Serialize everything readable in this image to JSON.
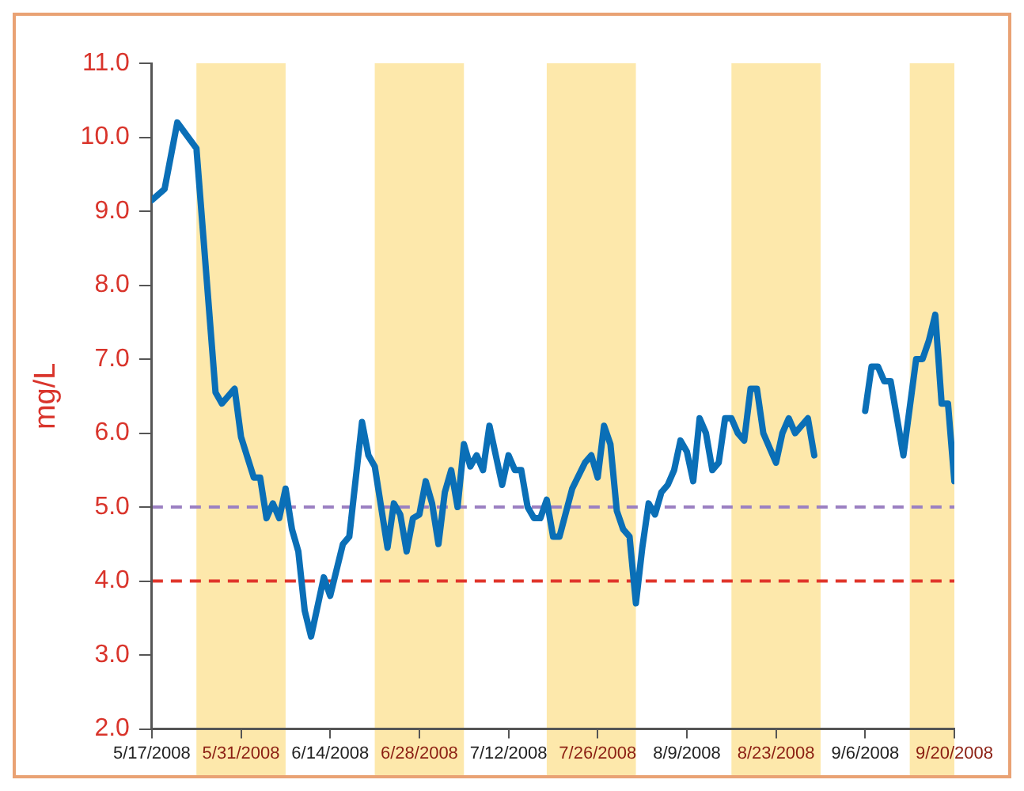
{
  "chart_data": {
    "type": "line",
    "ylabel": "mg/L",
    "x": [
      "2008-05-17",
      "2008-05-19",
      "2008-05-21",
      "2008-05-24",
      "2008-05-27",
      "2008-05-28",
      "2008-05-30",
      "2008-05-31",
      "2008-06-02",
      "2008-06-03",
      "2008-06-04",
      "2008-06-05",
      "2008-06-06",
      "2008-06-07",
      "2008-06-08",
      "2008-06-09",
      "2008-06-10",
      "2008-06-11",
      "2008-06-13",
      "2008-06-14",
      "2008-06-16",
      "2008-06-17",
      "2008-06-19",
      "2008-06-20",
      "2008-06-21",
      "2008-06-23",
      "2008-06-24",
      "2008-06-25",
      "2008-06-26",
      "2008-06-27",
      "2008-06-28",
      "2008-06-29",
      "2008-06-30",
      "2008-07-01",
      "2008-07-02",
      "2008-07-03",
      "2008-07-04",
      "2008-07-05",
      "2008-07-06",
      "2008-07-07",
      "2008-07-08",
      "2008-07-09",
      "2008-07-11",
      "2008-07-12",
      "2008-07-13",
      "2008-07-14",
      "2008-07-15",
      "2008-07-16",
      "2008-07-17",
      "2008-07-18",
      "2008-07-19",
      "2008-07-20",
      "2008-07-22",
      "2008-07-24",
      "2008-07-25",
      "2008-07-26",
      "2008-07-27",
      "2008-07-28",
      "2008-07-29",
      "2008-07-30",
      "2008-07-31",
      "2008-08-01",
      "2008-08-02",
      "2008-08-03",
      "2008-08-04",
      "2008-08-05",
      "2008-08-06",
      "2008-08-07",
      "2008-08-08",
      "2008-08-09",
      "2008-08-10",
      "2008-08-11",
      "2008-08-12",
      "2008-08-13",
      "2008-08-14",
      "2008-08-15",
      "2008-08-16",
      "2008-08-17",
      "2008-08-18",
      "2008-08-19",
      "2008-08-20",
      "2008-08-21",
      "2008-08-23",
      "2008-08-24",
      "2008-08-25",
      "2008-08-26",
      "2008-08-28",
      "2008-08-29",
      "2008-09-02",
      "2008-09-06",
      "2008-09-07",
      "2008-09-08",
      "2008-09-09",
      "2008-09-10",
      "2008-09-12",
      "2008-09-14",
      "2008-09-15",
      "2008-09-16",
      "2008-09-17",
      "2008-09-18",
      "2008-09-19",
      "2008-09-20"
    ],
    "series": [
      {
        "color": "#0a6fb7",
        "values": [
          9.15,
          9.3,
          10.2,
          9.85,
          6.55,
          6.4,
          6.6,
          5.95,
          5.4,
          5.4,
          4.85,
          5.05,
          4.85,
          5.25,
          4.7,
          4.4,
          3.6,
          3.25,
          4.05,
          3.8,
          4.5,
          4.6,
          6.15,
          5.7,
          5.55,
          4.45,
          5.05,
          4.9,
          4.4,
          4.85,
          4.9,
          5.35,
          5.05,
          4.5,
          5.2,
          5.5,
          5.0,
          5.85,
          5.55,
          5.7,
          5.5,
          6.1,
          5.3,
          5.7,
          5.5,
          5.5,
          5.0,
          4.85,
          4.85,
          5.1,
          4.6,
          4.6,
          5.25,
          5.6,
          5.7,
          5.4,
          6.1,
          5.85,
          4.95,
          4.7,
          4.6,
          3.7,
          4.45,
          5.05,
          4.9,
          5.2,
          5.3,
          5.5,
          5.9,
          5.75,
          5.35,
          6.2,
          6.0,
          5.5,
          5.6,
          6.2,
          6.2,
          6.0,
          5.9,
          6.6,
          6.6,
          6.0,
          5.6,
          6.0,
          6.2,
          6.0,
          6.2,
          5.7,
          null,
          6.3,
          6.9,
          6.9,
          6.7,
          6.7,
          5.7,
          7.0,
          7.0,
          7.25,
          7.6,
          6.4,
          6.4,
          5.35
        ]
      }
    ],
    "xlim": [
      "2008-05-17",
      "2008-09-20"
    ],
    "xticks": [
      {
        "value": "2008-05-17",
        "label": "5/17/2008"
      },
      {
        "value": "2008-05-31",
        "label": "5/31/2008"
      },
      {
        "value": "2008-06-14",
        "label": "6/14/2008"
      },
      {
        "value": "2008-06-28",
        "label": "6/28/2008"
      },
      {
        "value": "2008-07-12",
        "label": "7/12/2008"
      },
      {
        "value": "2008-07-26",
        "label": "7/26/2008"
      },
      {
        "value": "2008-08-09",
        "label": "8/9/2008"
      },
      {
        "value": "2008-08-23",
        "label": "8/23/2008"
      },
      {
        "value": "2008-09-06",
        "label": "9/6/2008"
      },
      {
        "value": "2008-09-20",
        "label": "9/20/2008"
      }
    ],
    "ylim": [
      2,
      11
    ],
    "yticks": [
      {
        "value": 2,
        "label": "2.0"
      },
      {
        "value": 3,
        "label": "3.0"
      },
      {
        "value": 4,
        "label": "4.0"
      },
      {
        "value": 5,
        "label": "5.0"
      },
      {
        "value": 6,
        "label": "6.0"
      },
      {
        "value": 7,
        "label": "7.0"
      },
      {
        "value": 8,
        "label": "8.0"
      },
      {
        "value": 9,
        "label": "9.0"
      },
      {
        "value": 10,
        "label": "10.0"
      },
      {
        "value": 11,
        "label": "11.0"
      }
    ],
    "ref_lines": [
      {
        "axis": "y",
        "value": 4,
        "color": "#e0352b",
        "line_style": "dashed"
      },
      {
        "axis": "y",
        "value": 5,
        "color": "#9b80c2",
        "line_style": "dashed"
      }
    ],
    "bands": [
      {
        "axis": "x",
        "from": "2008-05-24",
        "to": "2008-06-07",
        "color": "#fde8ab"
      },
      {
        "axis": "x",
        "from": "2008-06-21",
        "to": "2008-07-05",
        "color": "#fde8ab"
      },
      {
        "axis": "x",
        "from": "2008-07-18",
        "to": "2008-08-01",
        "color": "#fde8ab"
      },
      {
        "axis": "x",
        "from": "2008-08-16",
        "to": "2008-08-30",
        "color": "#fde8ab"
      },
      {
        "axis": "x",
        "from": "2008-09-13",
        "to": "2008-09-20",
        "color": "#fde8ab"
      }
    ],
    "grid": false,
    "legend": false,
    "marker": "none",
    "line_style": "solid"
  }
}
